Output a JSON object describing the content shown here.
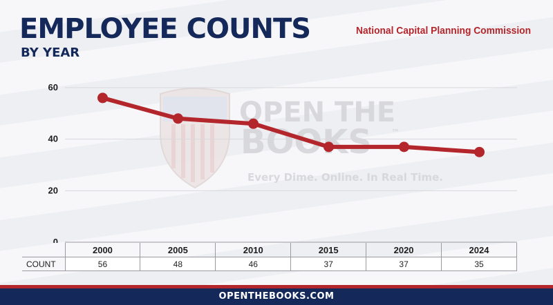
{
  "header": {
    "title": "EMPLOYEE COUNTS",
    "subtitle": "BY YEAR",
    "agency": "National Capital Planning Commission"
  },
  "watermark": {
    "line1": "OPEN THE",
    "line2": "BOOKS",
    "trademark": "™",
    "tagline": "Every Dime. Online. In Real Time."
  },
  "chart_data": {
    "type": "line",
    "title": "EMPLOYEE COUNTS",
    "subtitle": "BY YEAR",
    "categories": [
      "2000",
      "2005",
      "2010",
      "2015",
      "2020",
      "2024"
    ],
    "series": [
      {
        "name": "COUNT",
        "values": [
          56,
          48,
          46,
          37,
          37,
          35
        ],
        "color": "#b3262b"
      }
    ],
    "yticks": [
      0,
      20,
      40,
      60
    ],
    "ylim": [
      0,
      60
    ],
    "xlabel": "",
    "ylabel": "",
    "grid": true,
    "table_row_label": "COUNT",
    "table_values": [
      "56",
      "48",
      "46",
      "37",
      "37",
      "35"
    ]
  },
  "footer": {
    "text": "OPENTHEBOOKS.COM"
  },
  "colors": {
    "navy": "#14285a",
    "red": "#b3262b",
    "grid": "#d8d8dc"
  }
}
